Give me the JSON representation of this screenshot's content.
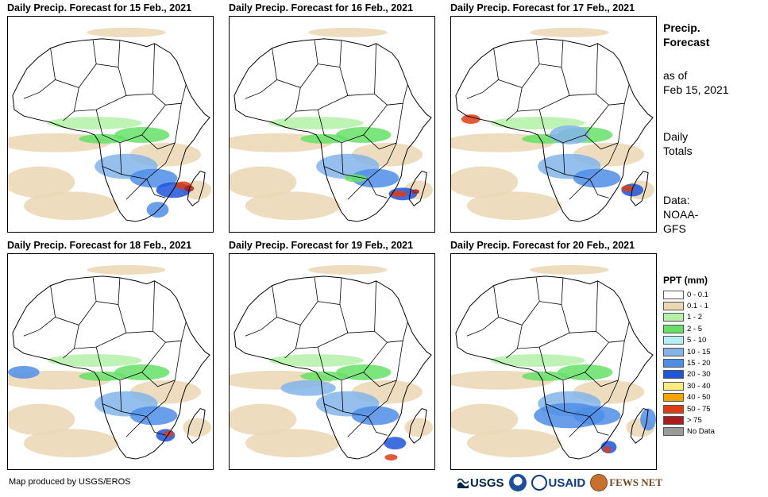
{
  "panels": [
    {
      "title": "Daily Precip. Forecast for 15 Feb., 2021"
    },
    {
      "title": "Daily Precip. Forecast for 16 Feb., 2021"
    },
    {
      "title": "Daily Precip. Forecast for 17 Feb., 2021"
    },
    {
      "title": "Daily Precip. Forecast for 18 Feb., 2021"
    },
    {
      "title": "Daily Precip. Forecast for 19 Feb., 2021"
    },
    {
      "title": "Daily Precip. Forecast for 20 Feb., 2021"
    }
  ],
  "sidebar": {
    "title_line1": "Precip.",
    "title_line2": "Forecast",
    "asof_line1": "as of",
    "asof_line2": "Feb 15, 2021",
    "totals_line1": "Daily",
    "totals_line2": "Totals",
    "source_line1": "Data:",
    "source_line2": "NOAA-",
    "source_line3": "GFS"
  },
  "legend": {
    "title": "PPT (mm)",
    "items": [
      {
        "label": "0 - 0.1",
        "color": "#ffffff"
      },
      {
        "label": "0.1 - 1",
        "color": "#ead7b3"
      },
      {
        "label": "1 - 2",
        "color": "#b4f0a8"
      },
      {
        "label": "2 - 5",
        "color": "#66e066"
      },
      {
        "label": "5 - 10",
        "color": "#b3f0f0"
      },
      {
        "label": "10 - 15",
        "color": "#82b4ea"
      },
      {
        "label": "15 - 20",
        "color": "#4f8ee6"
      },
      {
        "label": "20 - 30",
        "color": "#1f55d9"
      },
      {
        "label": "30 - 40",
        "color": "#ffeb80"
      },
      {
        "label": "40 - 50",
        "color": "#f5a300"
      },
      {
        "label": "50 - 75",
        "color": "#e03c14"
      },
      {
        "label": "> 75",
        "color": "#a81e1e"
      },
      {
        "label": "No Data",
        "color": "#9a9a9a"
      }
    ]
  },
  "footer": {
    "credit": "Map produced by USGS/EROS",
    "logo_usgs": "USGS",
    "logo_usaid": "USAID",
    "logo_fews": "FEWS NET"
  }
}
